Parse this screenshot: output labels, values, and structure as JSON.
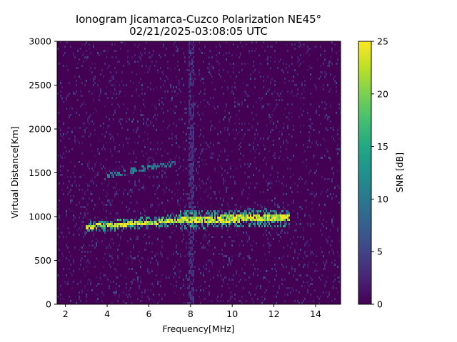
{
  "chart_data": {
    "type": "heatmap",
    "title": "Ionogram Jicamarca-Cuzco Polarization NE45°",
    "subtitle": "02/21/2025-03:08:05 UTC",
    "xlabel": "Frequency[MHz]",
    "ylabel": "Virtual Distance[Km]",
    "xlim": [
      1.6,
      15.2
    ],
    "ylim": [
      0,
      3000
    ],
    "xticks": [
      2,
      4,
      6,
      8,
      10,
      12,
      14
    ],
    "yticks": [
      0,
      500,
      1000,
      1500,
      2000,
      2500,
      3000
    ],
    "colorbar": {
      "label": "SNR [dB]",
      "range": [
        0,
        25
      ],
      "ticks": [
        0,
        5,
        10,
        15,
        20,
        25
      ],
      "colormap": "viridis"
    },
    "grid": false,
    "features": [
      {
        "name": "main trace (bright)",
        "x": [
          3.0,
          4.0,
          5.0,
          6.0,
          7.0,
          8.0,
          9.0,
          10.0,
          11.0,
          12.0,
          12.8
        ],
        "y": [
          880,
          900,
          915,
          930,
          950,
          965,
          970,
          975,
          985,
          980,
          980
        ],
        "snr": 25
      },
      {
        "name": "second hop trace",
        "x": [
          4.0,
          4.5,
          5.0,
          5.5,
          6.0,
          6.5,
          7.0,
          7.3
        ],
        "y": [
          1460,
          1490,
          1510,
          1540,
          1560,
          1580,
          1600,
          1620
        ],
        "snr": 11
      },
      {
        "name": "interference band",
        "x": [
          8.05
        ],
        "y": [
          0,
          3000
        ],
        "snr": 3
      }
    ]
  }
}
